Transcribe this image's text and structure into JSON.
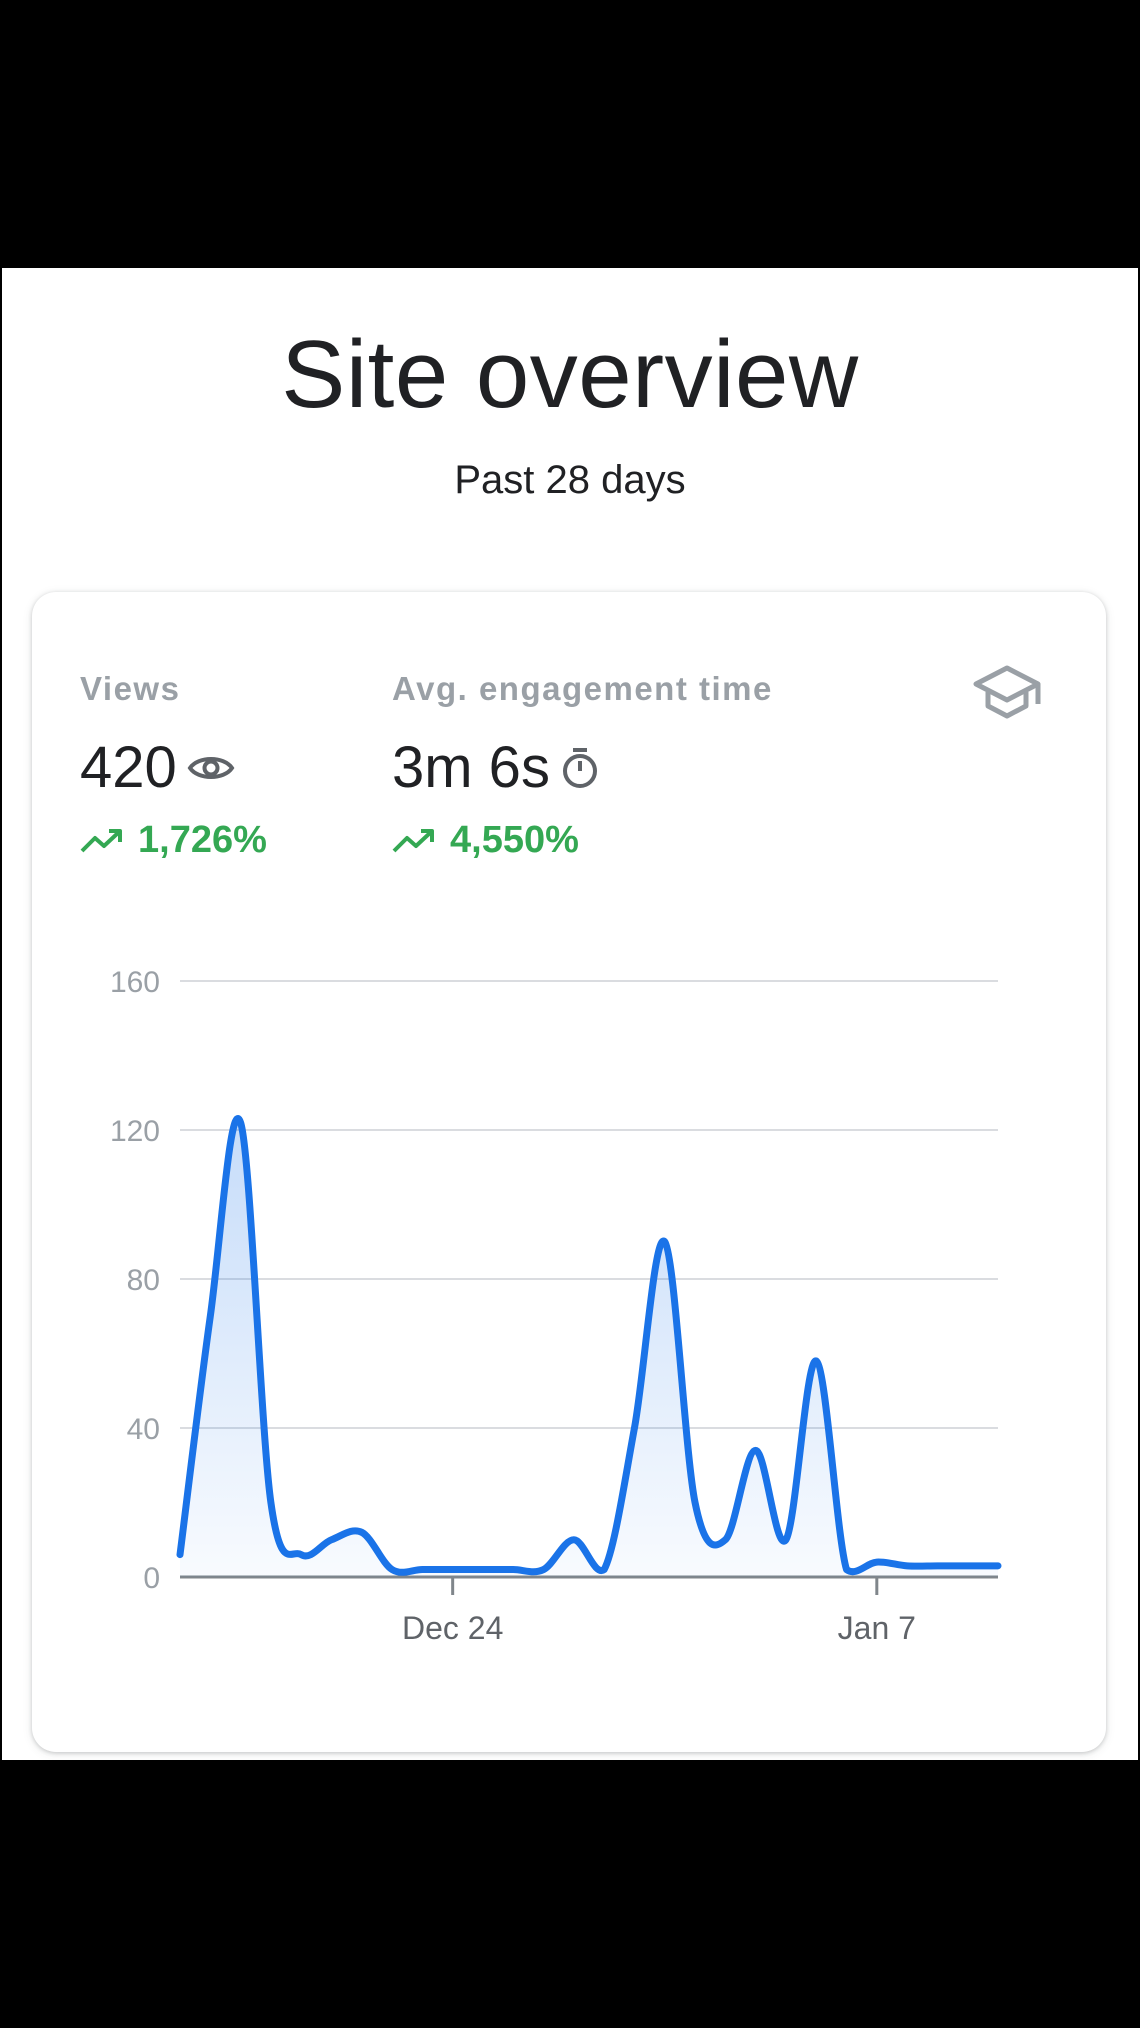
{
  "page": {
    "title": "Site overview",
    "subtitle": "Past 28 days"
  },
  "metrics": [
    {
      "label": "Views",
      "value": "420",
      "icon": "eye-icon",
      "change": "1,726%"
    },
    {
      "label": "Avg. engagement time",
      "value": "3m 6s",
      "icon": "stopwatch-icon",
      "change": "4,550%"
    }
  ],
  "colors": {
    "line": "#1a73e8",
    "positive": "#34a853",
    "muted": "#9aa0a6"
  },
  "chart_data": {
    "type": "area",
    "x": [
      0,
      1,
      2,
      3,
      4,
      5,
      6,
      7,
      8,
      9,
      10,
      11,
      12,
      13,
      14,
      15,
      16,
      17,
      18,
      19,
      20,
      21,
      22,
      23,
      24,
      25,
      26,
      27
    ],
    "values": [
      6,
      70,
      122,
      20,
      6,
      10,
      12,
      2,
      2,
      2,
      2,
      2,
      2,
      10,
      2,
      40,
      90,
      20,
      10,
      34,
      10,
      58,
      2,
      4,
      3,
      3,
      3,
      3
    ],
    "x_ticks": [
      {
        "index": 9,
        "label": "Dec 24"
      },
      {
        "index": 23,
        "label": "Jan 7"
      }
    ],
    "y_ticks": [
      0,
      40,
      80,
      120,
      160
    ],
    "ylim": [
      0,
      160
    ],
    "grid": true
  }
}
